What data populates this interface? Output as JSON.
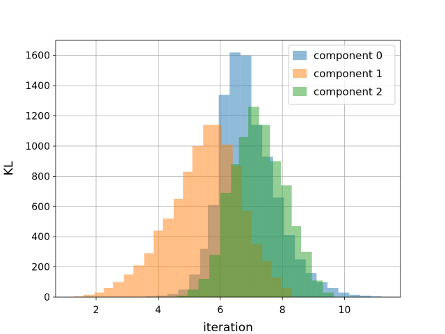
{
  "chart_data": {
    "type": "histogram",
    "title": "",
    "xlabel": "iteration",
    "ylabel": "KL",
    "xlim": [
      0.7,
      11.8
    ],
    "ylim": [
      0,
      1700
    ],
    "xticks": [
      2,
      4,
      6,
      8,
      10
    ],
    "yticks": [
      0,
      200,
      400,
      600,
      800,
      1000,
      1200,
      1400,
      1600
    ],
    "grid": true,
    "legend_position": "top-right",
    "series": [
      {
        "name": "component 0",
        "color": "#1f77b4",
        "bin_edges": [
          3.6,
          3.95,
          4.3,
          4.65,
          5.0,
          5.35,
          5.6,
          5.95,
          6.3,
          6.65,
          7.0,
          7.35,
          7.7,
          8.05,
          8.4,
          8.75,
          9.1,
          9.45,
          9.8,
          10.15,
          10.5,
          10.85,
          11.2
        ],
        "counts": [
          5,
          10,
          20,
          50,
          150,
          320,
          610,
          1340,
          1620,
          1600,
          1140,
          930,
          660,
          410,
          250,
          160,
          100,
          60,
          30,
          15,
          10,
          5
        ]
      },
      {
        "name": "component 1",
        "color": "#ff7f0e",
        "bin_edges": [
          1.3,
          1.6,
          1.95,
          2.25,
          2.55,
          2.9,
          3.2,
          3.55,
          3.85,
          4.15,
          4.5,
          4.8,
          5.1,
          5.45,
          5.75,
          6.05,
          6.4,
          6.7,
          7.0,
          7.35,
          7.65,
          7.95,
          8.3
        ],
        "counts": [
          5,
          15,
          30,
          60,
          100,
          150,
          210,
          290,
          440,
          520,
          650,
          830,
          1000,
          1140,
          1140,
          1010,
          870,
          570,
          350,
          240,
          130,
          60
        ]
      },
      {
        "name": "component 2",
        "color": "#2ca02c",
        "bin_edges": [
          4.6,
          4.95,
          5.3,
          5.65,
          6.0,
          6.35,
          6.6,
          6.9,
          7.25,
          7.6,
          7.95,
          8.3,
          8.6,
          8.95,
          9.3,
          9.65
        ],
        "counts": [
          10,
          50,
          120,
          280,
          690,
          880,
          1060,
          1260,
          1140,
          900,
          740,
          470,
          300,
          110,
          30
        ]
      }
    ]
  }
}
